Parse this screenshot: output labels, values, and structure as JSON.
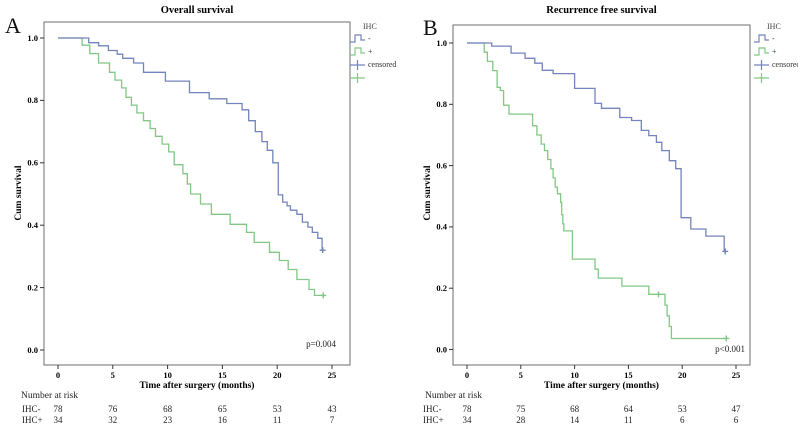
{
  "colors": {
    "ihc_negative": "#7484bc",
    "ihc_positive": "#82c785"
  },
  "figure": {
    "panels": [
      {
        "letter": "A",
        "title": "Overall survival",
        "ylabel": "Cum survival",
        "xlabel": "Time after surgery (months)",
        "p_value": "p=0.004",
        "legend": {
          "title": "IHC",
          "items": [
            {
              "marker": "blue-step",
              "label": "-"
            },
            {
              "marker": "green-step",
              "label": "+"
            },
            {
              "marker": "blue-plus",
              "label": "censored"
            },
            {
              "marker": "green-plus",
              "label": ""
            }
          ]
        },
        "risk_table": {
          "header": "Number at risk",
          "rows": [
            {
              "label": "IHC-",
              "values": [
                "78",
                "76",
                "68",
                "65",
                "53",
                "43"
              ]
            },
            {
              "label": "IHC+",
              "values": [
                "34",
                "32",
                "23",
                "16",
                "11",
                "7"
              ]
            }
          ]
        }
      },
      {
        "letter": "B",
        "title": "Recurrence free survival",
        "ylabel": "Cum survival",
        "xlabel": "Time after surgery (months)",
        "p_value": "p<0.001",
        "legend": {
          "title": "IHC",
          "items": [
            {
              "marker": "blue-step",
              "label": "-"
            },
            {
              "marker": "green-step",
              "label": "+"
            },
            {
              "marker": "blue-plus",
              "label": "censored"
            },
            {
              "marker": "green-plus",
              "label": ""
            }
          ]
        },
        "risk_table": {
          "header": "Number at risk",
          "rows": [
            {
              "label": "IHC-",
              "values": [
                "78",
                "75",
                "68",
                "64",
                "53",
                "47"
              ]
            },
            {
              "label": "IHC+",
              "values": [
                "34",
                "28",
                "14",
                "11",
                "6",
                "6"
              ]
            }
          ]
        }
      }
    ]
  },
  "chart_data": [
    {
      "type": "line",
      "subtype": "kaplan_meier_step",
      "title": "Overall survival",
      "xlabel": "Time after surgery (months)",
      "ylabel": "Cum survival",
      "xlim": [
        0,
        25
      ],
      "xticks": [
        0,
        5,
        10,
        15,
        20,
        25
      ],
      "ylim": [
        0,
        1.0
      ],
      "yticks": [
        0.0,
        0.2,
        0.4,
        0.6,
        0.8,
        1.0
      ],
      "p_value": "p=0.004",
      "legend_position": "right-outside",
      "grid": false,
      "series": [
        {
          "name": "IHC-",
          "color": "#7484bc",
          "steps": [
            [
              0,
              1.0
            ],
            [
              2.8,
              0.985
            ],
            [
              3.7,
              0.975
            ],
            [
              4.6,
              0.96
            ],
            [
              5.4,
              0.948
            ],
            [
              5.9,
              0.935
            ],
            [
              6.9,
              0.92
            ],
            [
              7.8,
              0.89
            ],
            [
              9.8,
              0.862
            ],
            [
              12.0,
              0.825
            ],
            [
              13.8,
              0.805
            ],
            [
              15.4,
              0.79
            ],
            [
              16.8,
              0.77
            ],
            [
              17.4,
              0.735
            ],
            [
              18.0,
              0.7
            ],
            [
              18.6,
              0.668
            ],
            [
              19.1,
              0.64
            ],
            [
              19.6,
              0.6
            ],
            [
              20.1,
              0.497
            ],
            [
              20.5,
              0.474
            ],
            [
              20.9,
              0.462
            ],
            [
              21.2,
              0.448
            ],
            [
              21.8,
              0.435
            ],
            [
              22.3,
              0.41
            ],
            [
              22.8,
              0.394
            ],
            [
              23.2,
              0.377
            ],
            [
              23.7,
              0.358
            ],
            [
              24.1,
              0.32
            ]
          ],
          "end_time": 24.3,
          "censored": [
            [
              24.15,
              0.32
            ]
          ]
        },
        {
          "name": "IHC+",
          "color": "#82c785",
          "steps": [
            [
              0,
              1.0
            ],
            [
              2.2,
              0.977
            ],
            [
              2.9,
              0.95
            ],
            [
              3.7,
              0.92
            ],
            [
              4.7,
              0.89
            ],
            [
              5.2,
              0.865
            ],
            [
              5.8,
              0.84
            ],
            [
              6.2,
              0.81
            ],
            [
              6.7,
              0.785
            ],
            [
              7.2,
              0.76
            ],
            [
              7.8,
              0.735
            ],
            [
              8.4,
              0.71
            ],
            [
              8.9,
              0.685
            ],
            [
              9.5,
              0.66
            ],
            [
              10.1,
              0.635
            ],
            [
              10.6,
              0.594
            ],
            [
              11.4,
              0.565
            ],
            [
              11.8,
              0.532
            ],
            [
              12.1,
              0.5
            ],
            [
              13.0,
              0.468
            ],
            [
              14.0,
              0.435
            ],
            [
              15.7,
              0.403
            ],
            [
              17.2,
              0.377
            ],
            [
              17.9,
              0.345
            ],
            [
              19.3,
              0.313
            ],
            [
              20.2,
              0.287
            ],
            [
              21.0,
              0.258
            ],
            [
              21.8,
              0.226
            ],
            [
              22.9,
              0.194
            ],
            [
              23.4,
              0.175
            ]
          ],
          "end_time": 24.2,
          "censored": [
            [
              24.2,
              0.175
            ]
          ]
        }
      ],
      "number_at_risk": {
        "times": [
          0,
          5,
          10,
          15,
          20,
          25
        ],
        "IHC-": [
          78,
          76,
          68,
          65,
          53,
          43
        ],
        "IHC+": [
          34,
          32,
          23,
          16,
          11,
          7
        ]
      }
    },
    {
      "type": "line",
      "subtype": "kaplan_meier_step",
      "title": "Recurrence free survival",
      "xlabel": "Time after surgery (months)",
      "ylabel": "Cum survival",
      "xlim": [
        0,
        25
      ],
      "xticks": [
        0,
        5,
        10,
        15,
        20,
        25
      ],
      "ylim": [
        0,
        1.0
      ],
      "yticks": [
        0.0,
        0.2,
        0.4,
        0.6,
        0.8,
        1.0
      ],
      "p_value": "p<0.001",
      "legend_position": "right-outside",
      "grid": false,
      "series": [
        {
          "name": "IHC-",
          "color": "#7484bc",
          "steps": [
            [
              0,
              1.0
            ],
            [
              2.3,
              0.99
            ],
            [
              4.1,
              0.967
            ],
            [
              5.4,
              0.95
            ],
            [
              6.3,
              0.934
            ],
            [
              7.0,
              0.911
            ],
            [
              8.0,
              0.9
            ],
            [
              10.0,
              0.852
            ],
            [
              11.9,
              0.803
            ],
            [
              12.5,
              0.787
            ],
            [
              14.2,
              0.757
            ],
            [
              15.3,
              0.747
            ],
            [
              16.2,
              0.715
            ],
            [
              16.9,
              0.698
            ],
            [
              17.6,
              0.676
            ],
            [
              18.1,
              0.649
            ],
            [
              18.8,
              0.616
            ],
            [
              19.4,
              0.59
            ],
            [
              19.9,
              0.43
            ],
            [
              20.8,
              0.393
            ],
            [
              22.2,
              0.37
            ],
            [
              23.9,
              0.32
            ]
          ],
          "end_time": 24.1,
          "censored": [
            [
              24.0,
              0.32
            ]
          ]
        },
        {
          "name": "IHC+",
          "color": "#82c785",
          "steps": [
            [
              0,
              1.0
            ],
            [
              1.6,
              0.97
            ],
            [
              1.9,
              0.94
            ],
            [
              2.4,
              0.91
            ],
            [
              2.8,
              0.855
            ],
            [
              3.1,
              0.845
            ],
            [
              3.4,
              0.797
            ],
            [
              3.9,
              0.768
            ],
            [
              6.1,
              0.73
            ],
            [
              6.5,
              0.7
            ],
            [
              6.9,
              0.67
            ],
            [
              7.2,
              0.649
            ],
            [
              7.5,
              0.62
            ],
            [
              7.8,
              0.59
            ],
            [
              8.0,
              0.56
            ],
            [
              8.2,
              0.53
            ],
            [
              8.4,
              0.508
            ],
            [
              8.7,
              0.48
            ],
            [
              8.8,
              0.44
            ],
            [
              8.9,
              0.41
            ],
            [
              9.0,
              0.387
            ],
            [
              9.8,
              0.295
            ],
            [
              11.9,
              0.262
            ],
            [
              12.2,
              0.233
            ],
            [
              14.4,
              0.207
            ],
            [
              16.9,
              0.18
            ],
            [
              18.4,
              0.145
            ],
            [
              18.6,
              0.11
            ],
            [
              18.8,
              0.075
            ],
            [
              19.0,
              0.036
            ]
          ],
          "end_time": 24.1,
          "censored": [
            [
              17.8,
              0.18
            ],
            [
              24.1,
              0.036
            ]
          ]
        }
      ],
      "number_at_risk": {
        "times": [
          0,
          5,
          10,
          15,
          20,
          25
        ],
        "IHC-": [
          78,
          75,
          68,
          64,
          53,
          47
        ],
        "IHC+": [
          34,
          28,
          14,
          11,
          6,
          6
        ]
      }
    }
  ]
}
